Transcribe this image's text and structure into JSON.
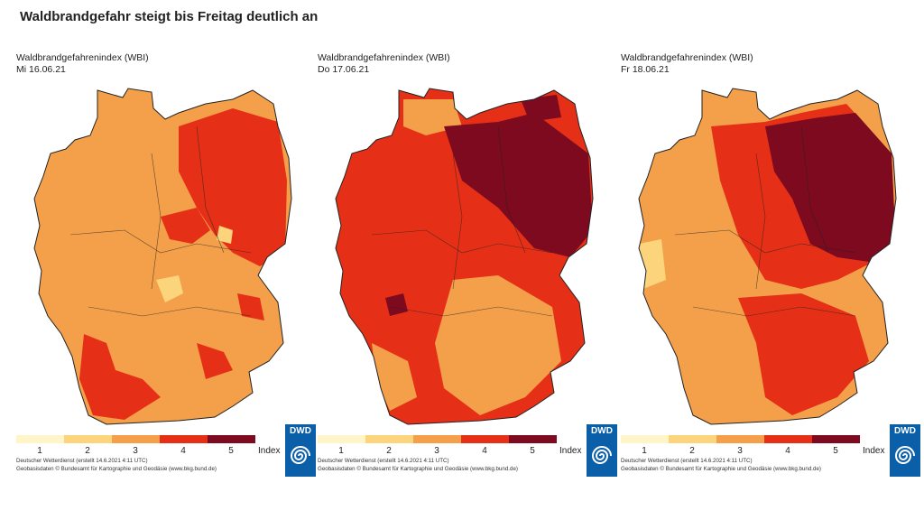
{
  "title": "Waldbrandgefahr steigt bis Freitag deutlich an",
  "colors": {
    "level1": "#fff5c8",
    "level2": "#fbd47c",
    "level3": "#f4a04a",
    "level4": "#e53017",
    "level5": "#7d0a1f",
    "border": "#222222",
    "dwd_blue": "#0b5ea8"
  },
  "panels": [
    {
      "heading": "Waldbrandgefahrenindex (WBI)",
      "date": "Mi 16.06.21",
      "logo_text": "DWD",
      "credit_line1": "Deutscher Wetterdienst (erstellt 14.6.2021 4:11 UTC)",
      "credit_line2": "Geobasisdaten © Bundesamt für Kartographie und Geodäsie (www.bkg.bund.de)"
    },
    {
      "heading": "Waldbrandgefahrenindex (WBI)",
      "date": "Do 17.06.21",
      "logo_text": "DWD",
      "credit_line1": "Deutscher Wetterdienst (erstellt 14.6.2021 4:11 UTC)",
      "credit_line2": "Geobasisdaten © Bundesamt für Kartographie und Geodäsie (www.bkg.bund.de)"
    },
    {
      "heading": "Waldbrandgefahrenindex (WBI)",
      "date": "Fr 18.06.21",
      "logo_text": "DWD",
      "credit_line1": "Deutscher Wetterdienst (erstellt 14.6.2021 4:11 UTC)",
      "credit_line2": "Geobasisdaten © Bundesamt für Kartographie und Geodäsie (www.bkg.bund.de)"
    }
  ],
  "legend": {
    "levels": [
      "1",
      "2",
      "3",
      "4",
      "5"
    ],
    "unit": "Index"
  }
}
